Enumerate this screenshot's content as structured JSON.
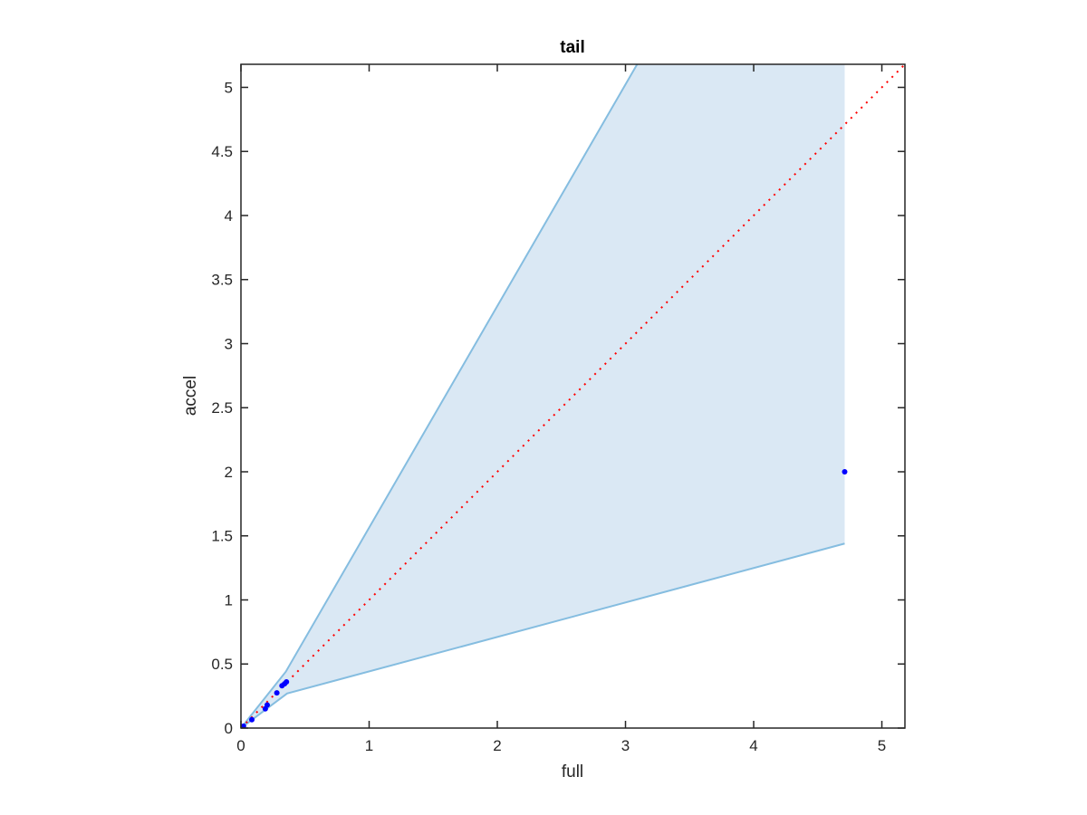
{
  "chart_data": {
    "type": "scatter",
    "title": "tail",
    "xlabel": "full",
    "ylabel": "accel",
    "xlim": [
      0,
      5.18
    ],
    "ylim": [
      0,
      5.18
    ],
    "xticks": [
      "0",
      "1",
      "2",
      "3",
      "4",
      "5"
    ],
    "yticks": [
      "0",
      "0.5",
      "1",
      "1.5",
      "2",
      "2.5",
      "3",
      "3.5",
      "4",
      "4.5",
      "5"
    ],
    "grid": false,
    "points": {
      "color": "#0000ff",
      "x": [
        0,
        0.01,
        0.02,
        0.085,
        0.19,
        0.205,
        0.28,
        0.32,
        0.34,
        0.355,
        4.71
      ],
      "y": [
        0,
        0.01,
        0.015,
        0.065,
        0.15,
        0.18,
        0.275,
        0.33,
        0.345,
        0.36,
        2.0
      ]
    },
    "reference_line": {
      "style": "dotted",
      "color": "#ff0000",
      "x": [
        0,
        5.18
      ],
      "y": [
        0,
        5.18
      ]
    },
    "band": {
      "fill": "#dae8f4",
      "edge": "#85bde0",
      "upper": {
        "x": [
          0,
          0.35,
          4.71
        ],
        "y": [
          0,
          0.44,
          7.98
        ]
      },
      "lower": {
        "x": [
          0,
          0.36,
          4.71
        ],
        "y": [
          0,
          0.27,
          1.44
        ]
      }
    }
  }
}
